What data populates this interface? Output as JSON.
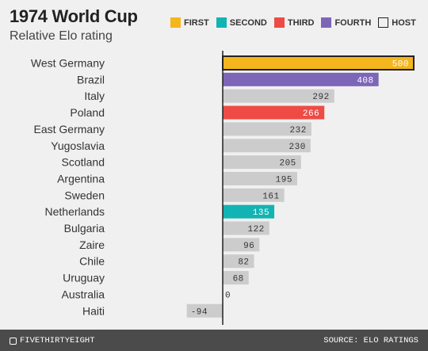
{
  "chart_data": {
    "type": "bar",
    "orientation": "horizontal",
    "title": "1974 World Cup",
    "subtitle": "Relative Elo rating",
    "categories": [
      "West Germany",
      "Brazil",
      "Italy",
      "Poland",
      "East Germany",
      "Yugoslavia",
      "Scotland",
      "Argentina",
      "Sweden",
      "Netherlands",
      "Bulgaria",
      "Zaire",
      "Chile",
      "Uruguay",
      "Australia",
      "Haiti"
    ],
    "values": [
      500,
      408,
      292,
      266,
      232,
      230,
      205,
      195,
      161,
      135,
      122,
      96,
      82,
      68,
      0,
      -94
    ],
    "finish": [
      "first",
      "fourth",
      "",
      "third",
      "",
      "",
      "",
      "",
      "",
      "second",
      "",
      "",
      "",
      "",
      "",
      ""
    ],
    "host": "West Germany",
    "xlim": [
      -100,
      500
    ],
    "legend": [
      {
        "key": "first",
        "label": "FIRST",
        "color": "#f5b51c"
      },
      {
        "key": "second",
        "label": "SECOND",
        "color": "#12b3b3"
      },
      {
        "key": "third",
        "label": "THIRD",
        "color": "#ee4b45"
      },
      {
        "key": "fourth",
        "label": "FOURTH",
        "color": "#7d66b8"
      },
      {
        "key": "host",
        "label": "HOST",
        "color": "#f0f0f0",
        "outline": "#222222"
      }
    ],
    "default_color": "#cccccc",
    "legend_placement": "top-right"
  },
  "footer": {
    "brand": "FIVETHIRTYEIGHT",
    "source": "SOURCE: ELO RATINGS"
  }
}
